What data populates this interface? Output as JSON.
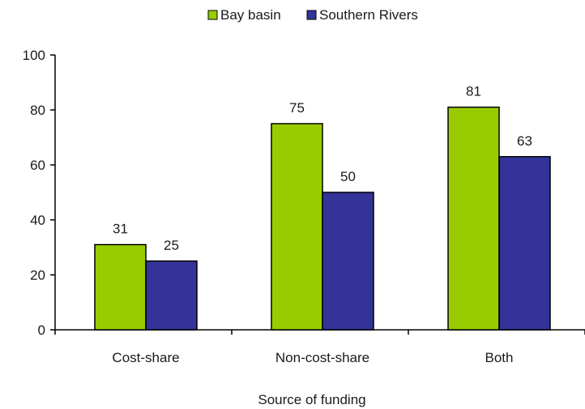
{
  "chart_data": {
    "type": "bar",
    "title": "",
    "xlabel": "Source of funding",
    "ylabel": "",
    "categories": [
      "Cost-share",
      "Non-cost-share",
      "Both"
    ],
    "series": [
      {
        "name": "Bay basin",
        "values": [
          31,
          75,
          81
        ],
        "labels": [
          "31",
          "75",
          "81"
        ],
        "color": "#99cc00"
      },
      {
        "name": "Southern Rivers",
        "values": [
          25,
          50,
          63
        ],
        "labels": [
          "25",
          "50",
          "63"
        ],
        "color": "#333399"
      }
    ],
    "ylim": [
      0,
      100
    ],
    "yticks": [
      0,
      20,
      40,
      60,
      80,
      100
    ],
    "ytick_labels": [
      "0",
      "20",
      "40",
      "60",
      "80",
      "100"
    ],
    "grid": false,
    "legend_position": "top"
  }
}
